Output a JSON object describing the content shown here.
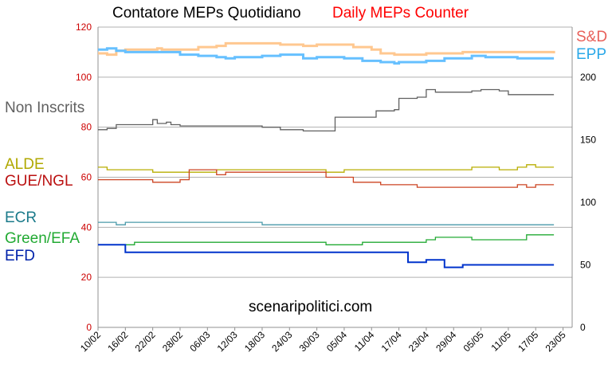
{
  "titles": {
    "italian": "Contatore MEPs Quotidiano",
    "english": "Daily MEPs Counter"
  },
  "watermark": "scenaripolitici.com",
  "chart_data": {
    "type": "line",
    "x_labels": [
      "10/02",
      "16/02",
      "22/02",
      "28/02",
      "06/03",
      "12/03",
      "18/03",
      "24/03",
      "30/03",
      "05/04",
      "11/04",
      "17/04",
      "23/04",
      "29/04",
      "05/05",
      "11/05",
      "17/05",
      "23/05"
    ],
    "x_range_days": [
      0,
      104
    ],
    "left_axis": {
      "ticks": [
        0,
        20,
        40,
        60,
        80,
        100,
        120
      ],
      "range": [
        0,
        120
      ],
      "color": "#cc0000"
    },
    "right_axis": {
      "ticks": [
        0,
        50,
        100,
        150,
        200
      ],
      "range": [
        0,
        240
      ],
      "color": "#000000"
    },
    "grid": true,
    "series": [
      {
        "name": "S&D",
        "axis": "right",
        "color": "#ffc890",
        "points": [
          [
            0,
            219
          ],
          [
            2,
            218
          ],
          [
            4,
            221
          ],
          [
            6,
            222
          ],
          [
            10,
            222
          ],
          [
            13,
            223
          ],
          [
            14,
            222
          ],
          [
            20,
            222
          ],
          [
            22,
            224
          ],
          [
            26,
            225
          ],
          [
            28,
            227
          ],
          [
            35,
            227
          ],
          [
            40,
            226
          ],
          [
            44,
            226
          ],
          [
            45,
            225
          ],
          [
            48,
            226
          ],
          [
            53,
            226
          ],
          [
            56,
            224
          ],
          [
            60,
            222
          ],
          [
            62,
            219
          ],
          [
            65,
            218
          ],
          [
            70,
            218
          ],
          [
            72,
            219
          ],
          [
            78,
            219
          ],
          [
            80,
            220
          ],
          [
            90,
            220
          ],
          [
            92,
            220
          ],
          [
            100,
            219
          ]
        ]
      },
      {
        "name": "EPP",
        "axis": "right",
        "color": "#66c0ff",
        "points": [
          [
            0,
            222
          ],
          [
            2,
            223
          ],
          [
            4,
            221
          ],
          [
            6,
            220
          ],
          [
            12,
            220
          ],
          [
            17,
            220
          ],
          [
            18,
            218
          ],
          [
            22,
            217
          ],
          [
            26,
            216
          ],
          [
            28,
            215
          ],
          [
            30,
            216
          ],
          [
            36,
            217
          ],
          [
            40,
            218
          ],
          [
            44,
            218
          ],
          [
            45,
            215
          ],
          [
            48,
            216
          ],
          [
            50,
            216
          ],
          [
            54,
            215
          ],
          [
            58,
            213
          ],
          [
            62,
            212
          ],
          [
            65,
            211
          ],
          [
            66,
            212
          ],
          [
            70,
            212
          ],
          [
            72,
            213
          ],
          [
            76,
            215
          ],
          [
            82,
            217
          ],
          [
            85,
            216
          ],
          [
            88,
            216
          ],
          [
            92,
            215
          ],
          [
            100,
            215
          ]
        ]
      },
      {
        "name": "Non Inscrits",
        "axis": "right",
        "color": "#606060",
        "points": [
          [
            0,
            158
          ],
          [
            2,
            159
          ],
          [
            4,
            162
          ],
          [
            8,
            162
          ],
          [
            10,
            162
          ],
          [
            12,
            166
          ],
          [
            13,
            163
          ],
          [
            15,
            164
          ],
          [
            16,
            162
          ],
          [
            18,
            161
          ],
          [
            26,
            161
          ],
          [
            36,
            160
          ],
          [
            40,
            158
          ],
          [
            45,
            157
          ],
          [
            50,
            157
          ],
          [
            52,
            168
          ],
          [
            57,
            168
          ],
          [
            60,
            168
          ],
          [
            61,
            173
          ],
          [
            65,
            174
          ],
          [
            66,
            183
          ],
          [
            70,
            184
          ],
          [
            72,
            190
          ],
          [
            74,
            188
          ],
          [
            78,
            188
          ],
          [
            80,
            188
          ],
          [
            82,
            189
          ],
          [
            84,
            190
          ],
          [
            88,
            189
          ],
          [
            90,
            186
          ],
          [
            100,
            186
          ]
        ]
      },
      {
        "name": "ALDE",
        "axis": "left",
        "color": "#b8ad00",
        "points": [
          [
            0,
            64
          ],
          [
            2,
            63
          ],
          [
            10,
            63
          ],
          [
            12,
            62
          ],
          [
            20,
            62
          ],
          [
            26,
            63
          ],
          [
            30,
            63
          ],
          [
            34,
            63
          ],
          [
            38,
            63
          ],
          [
            40,
            63
          ],
          [
            44,
            63
          ],
          [
            48,
            63
          ],
          [
            50,
            62
          ],
          [
            52,
            62
          ],
          [
            54,
            63
          ],
          [
            60,
            63
          ],
          [
            66,
            63
          ],
          [
            74,
            63
          ],
          [
            80,
            63
          ],
          [
            82,
            64
          ],
          [
            86,
            64
          ],
          [
            88,
            63
          ],
          [
            90,
            63
          ],
          [
            92,
            64
          ],
          [
            94,
            65
          ],
          [
            96,
            64
          ],
          [
            100,
            64
          ]
        ]
      },
      {
        "name": "GUE/NGL",
        "axis": "left",
        "color": "#cc4422",
        "points": [
          [
            0,
            59
          ],
          [
            2,
            59
          ],
          [
            10,
            59
          ],
          [
            12,
            58
          ],
          [
            16,
            58
          ],
          [
            18,
            59
          ],
          [
            20,
            63
          ],
          [
            22,
            63
          ],
          [
            26,
            61
          ],
          [
            28,
            62
          ],
          [
            34,
            62
          ],
          [
            40,
            62
          ],
          [
            46,
            62
          ],
          [
            50,
            60
          ],
          [
            52,
            60
          ],
          [
            56,
            58
          ],
          [
            60,
            58
          ],
          [
            62,
            57
          ],
          [
            68,
            57
          ],
          [
            70,
            56
          ],
          [
            76,
            56
          ],
          [
            82,
            56
          ],
          [
            88,
            56
          ],
          [
            90,
            56
          ],
          [
            92,
            57
          ],
          [
            94,
            56
          ],
          [
            96,
            57
          ],
          [
            100,
            57
          ]
        ]
      },
      {
        "name": "ECR",
        "axis": "left",
        "color": "#4a9aaa",
        "points": [
          [
            0,
            42
          ],
          [
            2,
            42
          ],
          [
            4,
            41
          ],
          [
            6,
            42
          ],
          [
            20,
            42
          ],
          [
            34,
            42
          ],
          [
            36,
            41
          ],
          [
            44,
            41
          ],
          [
            60,
            41
          ],
          [
            100,
            41
          ]
        ]
      },
      {
        "name": "Green/EFA",
        "axis": "left",
        "color": "#22aa33",
        "points": [
          [
            0,
            33
          ],
          [
            6,
            33
          ],
          [
            8,
            34
          ],
          [
            30,
            34
          ],
          [
            40,
            34
          ],
          [
            48,
            34
          ],
          [
            50,
            33
          ],
          [
            56,
            33
          ],
          [
            58,
            34
          ],
          [
            70,
            34
          ],
          [
            72,
            35
          ],
          [
            74,
            36
          ],
          [
            80,
            36
          ],
          [
            82,
            35
          ],
          [
            88,
            35
          ],
          [
            92,
            35
          ],
          [
            94,
            37
          ],
          [
            100,
            37
          ]
        ]
      },
      {
        "name": "EFD",
        "axis": "left",
        "color": "#0033cc",
        "points": [
          [
            0,
            33
          ],
          [
            5,
            33
          ],
          [
            6,
            30
          ],
          [
            20,
            30
          ],
          [
            30,
            30
          ],
          [
            40,
            30
          ],
          [
            50,
            30
          ],
          [
            60,
            30
          ],
          [
            66,
            30
          ],
          [
            68,
            26
          ],
          [
            70,
            26
          ],
          [
            72,
            27
          ],
          [
            74,
            27
          ],
          [
            76,
            24
          ],
          [
            78,
            24
          ],
          [
            80,
            25
          ],
          [
            90,
            25
          ],
          [
            100,
            25
          ]
        ]
      }
    ]
  },
  "labels": {
    "sd": "S&D",
    "epp": "EPP",
    "non_inscrits": "Non Inscrits",
    "alde": "ALDE",
    "gue": "GUE/NGL",
    "ecr": "ECR",
    "green": "Green/EFA",
    "efd": "EFD"
  }
}
